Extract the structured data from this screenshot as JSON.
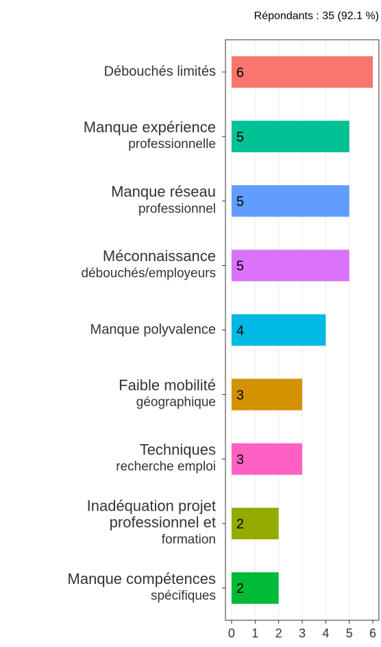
{
  "chart_data": {
    "type": "bar",
    "orientation": "horizontal",
    "subtitle": "Répondants : 35 (92.1 %)",
    "categories": [
      [
        "Débouchés limités"
      ],
      [
        "Manque expérience",
        "professionnelle"
      ],
      [
        "Manque réseau",
        "professionnel"
      ],
      [
        "Méconnaissance",
        "débouchés/employeurs"
      ],
      [
        "Manque polyvalence"
      ],
      [
        "Faible mobilité",
        "géographique"
      ],
      [
        "Techniques",
        "recherche emploi"
      ],
      [
        "Inadéquation projet",
        "professionnel et",
        "formation"
      ],
      [
        "Manque compétences",
        "spécifiques"
      ]
    ],
    "values": [
      6,
      5,
      5,
      5,
      4,
      3,
      3,
      2,
      2
    ],
    "colors": [
      "#F8766D",
      "#00C094",
      "#619CFF",
      "#DB72FB",
      "#00B9E3",
      "#D39200",
      "#FF61C3",
      "#93AA00",
      "#00BA38"
    ],
    "xlim": [
      -0.26,
      6.26
    ],
    "xticks": [
      0,
      1,
      2,
      3,
      4,
      5,
      6
    ],
    "grid": true
  }
}
